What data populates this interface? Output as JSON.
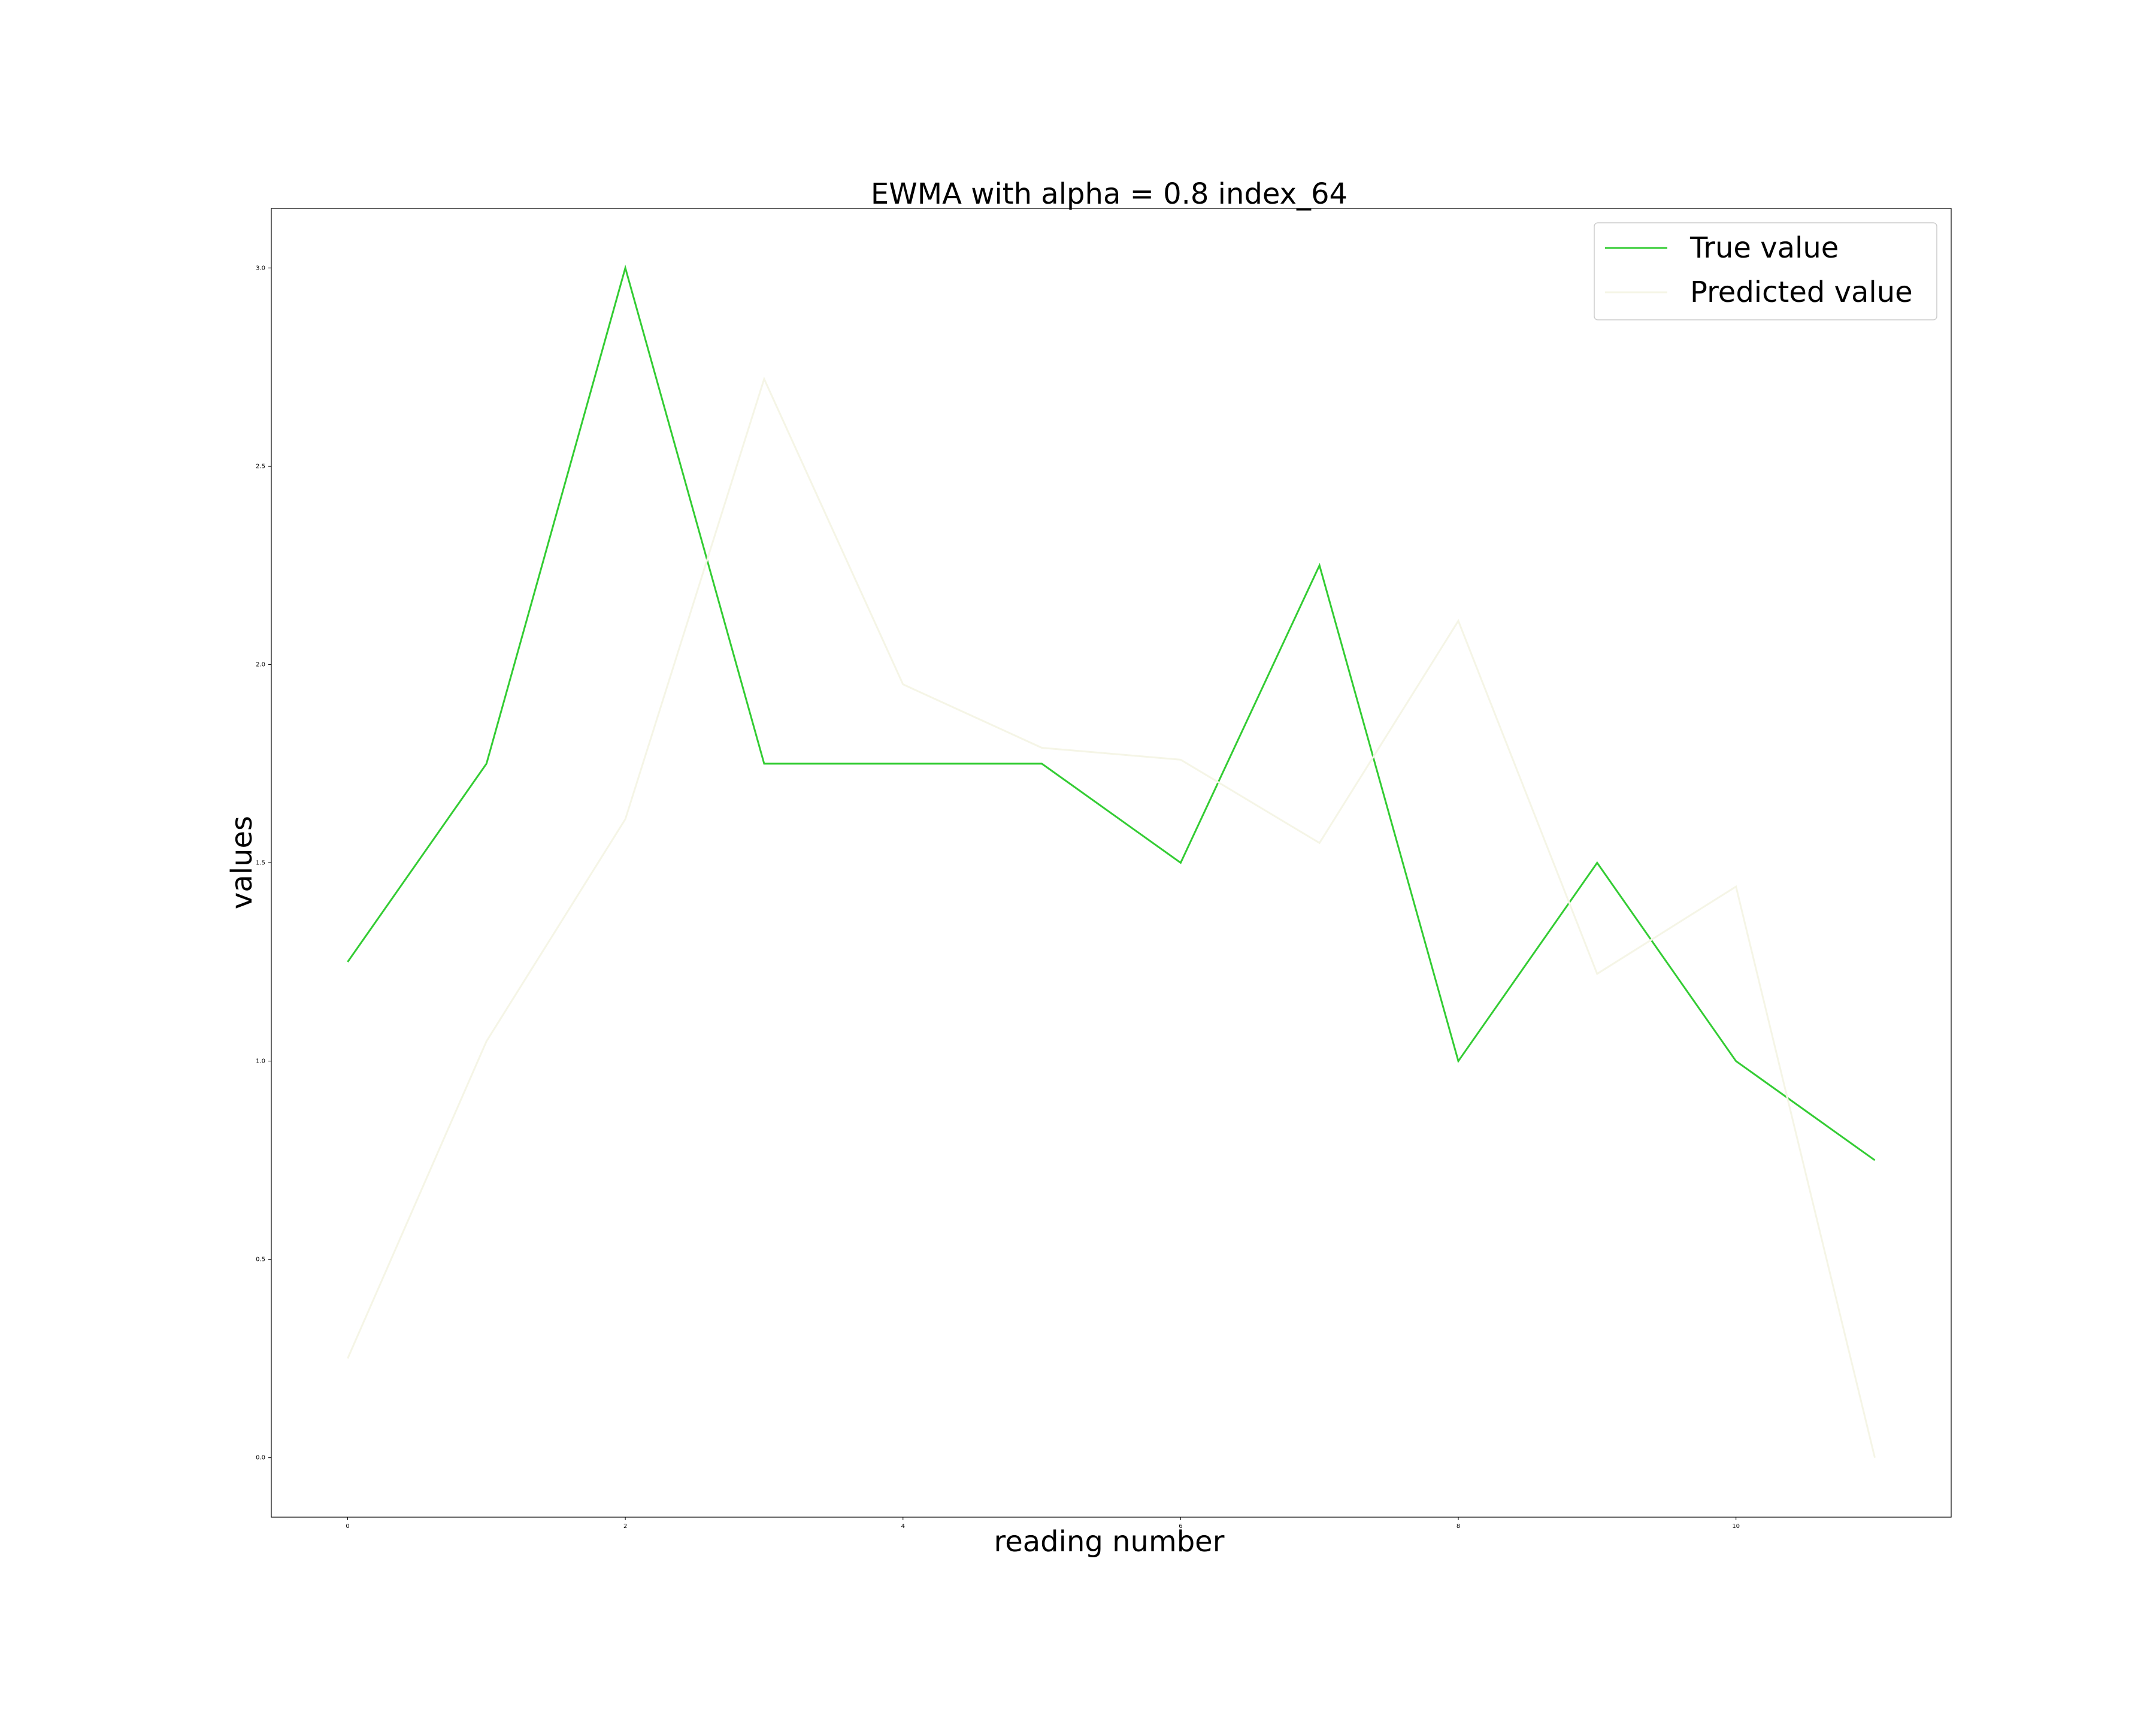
{
  "chart_data": {
    "type": "line",
    "title": "EWMA with alpha = 0.8 index_64",
    "xlabel": "reading number",
    "ylabel": "values",
    "x": [
      0,
      1,
      2,
      3,
      4,
      5,
      6,
      7,
      8,
      9,
      10,
      11
    ],
    "xlim": [
      -0.55,
      11.55
    ],
    "ylim": [
      -0.15,
      3.15
    ],
    "xticks": [
      0,
      2,
      4,
      6,
      8,
      10
    ],
    "xtick_labels": [
      "0",
      "2",
      "4",
      "6",
      "8",
      "10"
    ],
    "yticks": [
      0.0,
      0.5,
      1.0,
      1.5,
      2.0,
      2.5,
      3.0
    ],
    "ytick_labels": [
      "0.0",
      "0.5",
      "1.0",
      "1.5",
      "2.0",
      "2.5",
      "3.0"
    ],
    "grid": false,
    "legend_position": "top-right",
    "series": [
      {
        "name": "True value",
        "color": "#33cc33",
        "values": [
          1.25,
          1.75,
          3.0,
          1.75,
          1.75,
          1.75,
          1.5,
          2.25,
          1.0,
          1.5,
          1.0,
          0.75
        ]
      },
      {
        "name": "Predicted value",
        "color": "#f5f5e6",
        "values": [
          0.25,
          1.05,
          1.61,
          2.72,
          1.95,
          1.79,
          1.76,
          1.55,
          2.11,
          1.22,
          1.44,
          0.0
        ]
      }
    ]
  }
}
